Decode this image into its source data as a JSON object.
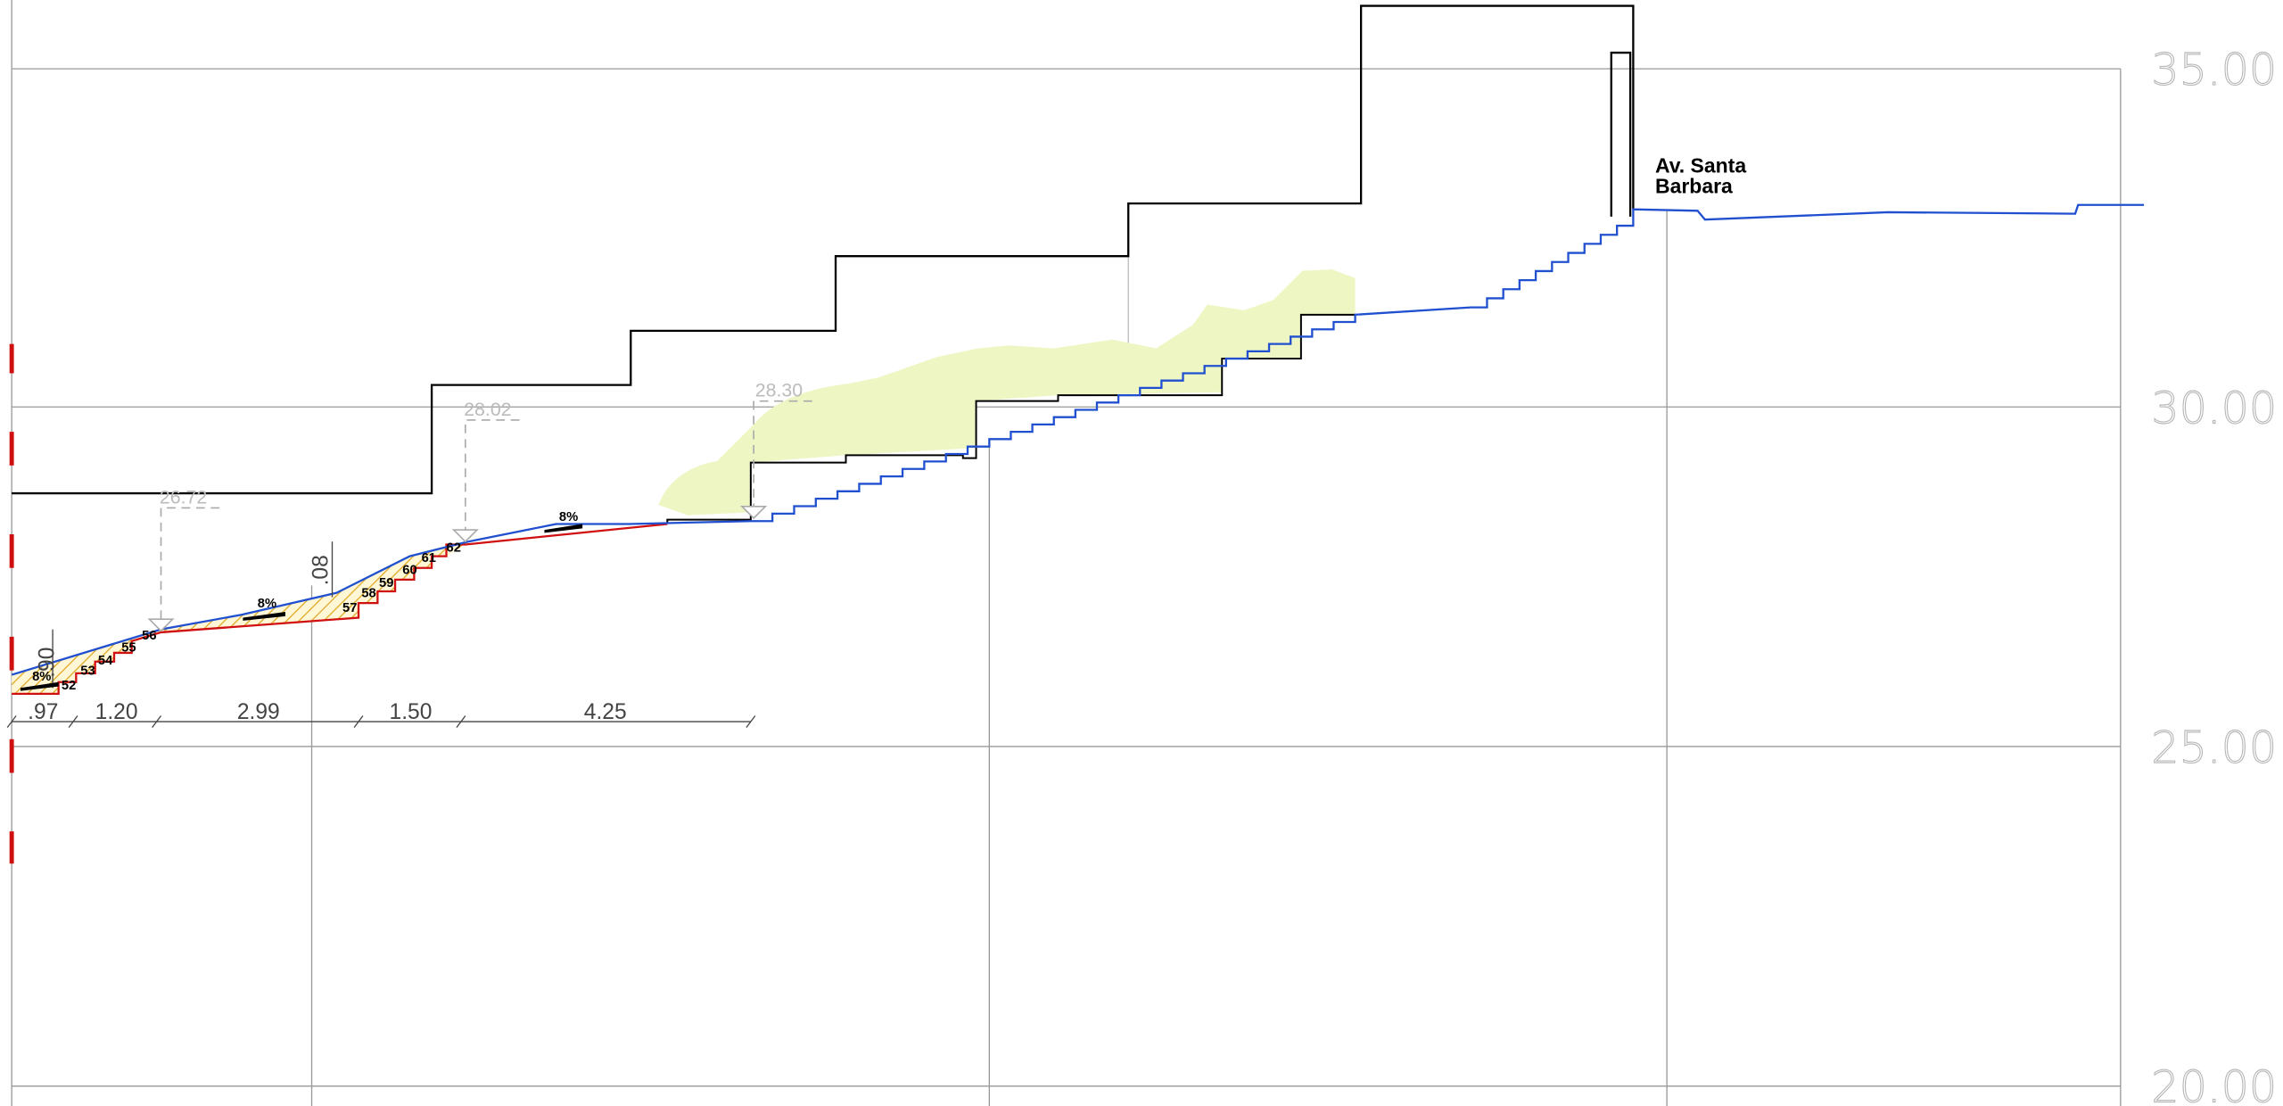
{
  "elevations": [
    "35.00",
    "30.00",
    "25.00",
    "20.00"
  ],
  "level_marks": [
    "26.72",
    "28.02",
    "28.30"
  ],
  "dimensions": [
    ".97",
    "1.20",
    "2.99",
    "1.50",
    "4.25"
  ],
  "vertical_dimensions": [
    ".90",
    ".08"
  ],
  "step_numbers": [
    "52",
    "53",
    "54",
    "55",
    "56",
    "57",
    "58",
    "59",
    "60",
    "61",
    "62"
  ],
  "slopes": [
    "8%",
    "8%",
    "8%"
  ],
  "street_label": [
    "Av. Santa",
    "Barbara"
  ]
}
